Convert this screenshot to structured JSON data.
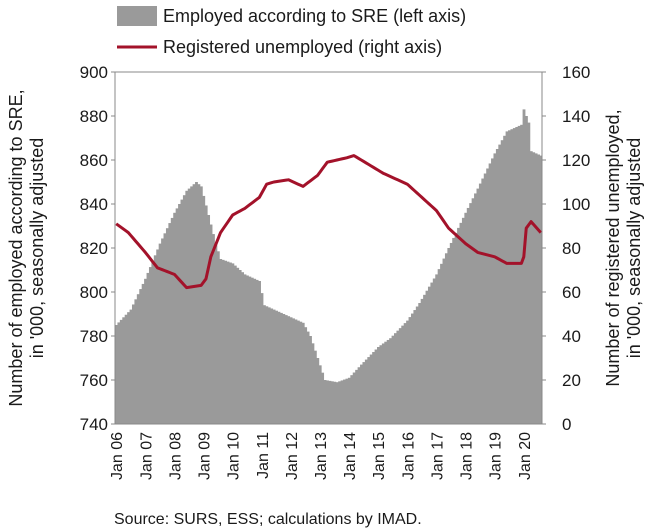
{
  "chart_data": {
    "type": "bar+line",
    "legend": [
      {
        "name": "Employed according to SRE (left axis)",
        "color": "#9a9a9a",
        "kind": "area"
      },
      {
        "name": "Registered unemployed (right axis)",
        "color": "#a3122a",
        "kind": "line"
      }
    ],
    "legend_placement": "top",
    "ylabel_left": "Number of employed according to SRE, in '000, seasonally adjusted",
    "ylabel_right": "Number of registered unemployed, in '000, seasonally adjusted",
    "ylim_left": [
      740,
      900
    ],
    "ylim_right": [
      0,
      160
    ],
    "yticks_left": [
      "900",
      "880",
      "860",
      "840",
      "820",
      "800",
      "780",
      "760",
      "740"
    ],
    "yticks_right": [
      "160",
      "140",
      "120",
      "100",
      "80",
      "60",
      "40",
      "20",
      "0"
    ],
    "xticks": [
      "Jan 06",
      "Jan 07",
      "Jan 08",
      "Jan 09",
      "Jan 10",
      "Jan 11",
      "Jan 12",
      "Jan 13",
      "Jan 14",
      "Jan 15",
      "Jan 16",
      "Jan 17",
      "Jan 18",
      "Jan 19",
      "Jan 20"
    ],
    "x_start": "2006-01",
    "x_end": "2020-08",
    "grid": false,
    "employed_anchors": [
      [
        "2006-01",
        785
      ],
      [
        "2006-07",
        792
      ],
      [
        "2007-01",
        806
      ],
      [
        "2007-07",
        822
      ],
      [
        "2008-01",
        836
      ],
      [
        "2008-06",
        846
      ],
      [
        "2008-10",
        850
      ],
      [
        "2008-12",
        848
      ],
      [
        "2009-03",
        835
      ],
      [
        "2009-06",
        822
      ],
      [
        "2009-08",
        815
      ],
      [
        "2010-01",
        813
      ],
      [
        "2010-06",
        808
      ],
      [
        "2010-12",
        805
      ],
      [
        "2011-02",
        794
      ],
      [
        "2011-06",
        792
      ],
      [
        "2011-12",
        789
      ],
      [
        "2012-06",
        786
      ],
      [
        "2012-09",
        780
      ],
      [
        "2012-12",
        770
      ],
      [
        "2013-03",
        760
      ],
      [
        "2013-08",
        759
      ],
      [
        "2014-01",
        761
      ],
      [
        "2014-06",
        767
      ],
      [
        "2015-01",
        775
      ],
      [
        "2015-06",
        779
      ],
      [
        "2016-01",
        787
      ],
      [
        "2016-06",
        795
      ],
      [
        "2017-01",
        808
      ],
      [
        "2017-06",
        820
      ],
      [
        "2018-01",
        836
      ],
      [
        "2018-06",
        847
      ],
      [
        "2019-01",
        863
      ],
      [
        "2019-06",
        873
      ],
      [
        "2019-12",
        876
      ],
      [
        "2020-01",
        883
      ],
      [
        "2020-02",
        880
      ],
      [
        "2020-03",
        877
      ],
      [
        "2020-04",
        864
      ],
      [
        "2020-08",
        862
      ]
    ],
    "unemployed_anchors": [
      [
        "2006-01",
        91
      ],
      [
        "2006-06",
        87
      ],
      [
        "2007-01",
        78
      ],
      [
        "2007-06",
        71
      ],
      [
        "2008-01",
        68
      ],
      [
        "2008-06",
        62
      ],
      [
        "2008-12",
        63
      ],
      [
        "2009-02",
        66
      ],
      [
        "2009-04",
        76
      ],
      [
        "2009-08",
        87
      ],
      [
        "2010-01",
        95
      ],
      [
        "2010-06",
        98
      ],
      [
        "2010-12",
        103
      ],
      [
        "2011-03",
        109
      ],
      [
        "2011-06",
        110
      ],
      [
        "2011-12",
        111
      ],
      [
        "2012-06",
        108
      ],
      [
        "2012-12",
        113
      ],
      [
        "2013-04",
        119
      ],
      [
        "2013-12",
        121
      ],
      [
        "2014-03",
        122
      ],
      [
        "2014-09",
        118
      ],
      [
        "2015-03",
        114
      ],
      [
        "2015-09",
        111
      ],
      [
        "2016-01",
        109
      ],
      [
        "2016-06",
        104
      ],
      [
        "2017-01",
        97
      ],
      [
        "2017-06",
        89
      ],
      [
        "2018-01",
        82
      ],
      [
        "2018-06",
        78
      ],
      [
        "2019-01",
        76
      ],
      [
        "2019-06",
        73
      ],
      [
        "2019-12",
        73
      ],
      [
        "2020-01",
        76
      ],
      [
        "2020-02",
        89
      ],
      [
        "2020-04",
        92
      ],
      [
        "2020-08",
        87
      ]
    ]
  },
  "source": "Source: SURS, ESS; calculations by IMAD."
}
